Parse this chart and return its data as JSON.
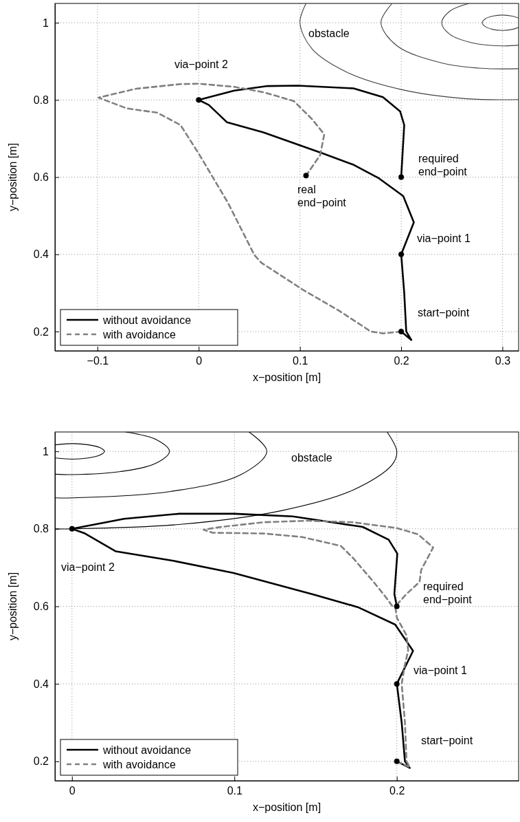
{
  "chart_data": [
    {
      "type": "line",
      "xlabel": "x−position [m]",
      "ylabel": "y−position [m]",
      "xlim": [
        -0.142,
        0.316
      ],
      "ylim": [
        0.15,
        1.05
      ],
      "xticks": [
        {
          "value": -0.1,
          "label": "−0.1"
        },
        0,
        0.1,
        0.2,
        0.3
      ],
      "yticks": [
        0.2,
        0.4,
        0.6,
        0.8,
        1
      ],
      "grid": true,
      "legend": "bottom left",
      "series": [
        {
          "name": "without avoidance",
          "color": "#000000",
          "line_style": "solid",
          "x": [
            0.2,
            0.21,
            0.205,
            0.203,
            0.2,
            0.2125,
            0.202,
            0.178,
            0.153,
            0.123,
            0.064,
            0.028,
            0.01,
            0,
            0.035,
            0.068,
            0.098,
            0.153,
            0.182,
            0.199,
            0.203,
            0.2
          ],
          "values": [
            0.2,
            0.178,
            0.2,
            0.3,
            0.4,
            0.483,
            0.551,
            0.597,
            0.632,
            0.661,
            0.716,
            0.742,
            0.787,
            0.8,
            0.824,
            0.836,
            0.837,
            0.83,
            0.807,
            0.77,
            0.735,
            0.6
          ]
        },
        {
          "name": "with avoidance",
          "color": "#808080",
          "line_style": "dashed",
          "x": [
            0.2,
            0.182,
            0.17,
            0.138,
            0.103,
            0.062,
            0.055,
            0.029,
            0,
            -0.018,
            -0.041,
            -0.071,
            -0.099,
            -0.062,
            -0.018,
            0,
            0.035,
            0.064,
            0.094,
            0.112,
            0.124,
            0.12,
            0.106
          ],
          "values": [
            0.2,
            0.195,
            0.2,
            0.255,
            0.308,
            0.378,
            0.398,
            0.533,
            0.661,
            0.735,
            0.767,
            0.778,
            0.806,
            0.829,
            0.841,
            0.842,
            0.834,
            0.82,
            0.797,
            0.75,
            0.711,
            0.657,
            0.604
          ]
        },
        {
          "type": "scatter",
          "marker": "circle",
          "color": "#000000",
          "x": [
            0.2,
            0.2,
            0.2,
            0,
            0.106
          ],
          "values": [
            0.2,
            0.4,
            0.6,
            0.8,
            0.604
          ]
        },
        {
          "color": "#404040",
          "line_style": "solid",
          "x": [
            0.316,
            0.31,
            0.3,
            0.29,
            0.283,
            0.28,
            0.283,
            0.29,
            0.3,
            0.31,
            0.316
          ],
          "values": [
            1.012,
            1.017,
            1.02,
            1.017,
            1.01,
            1,
            0.99,
            0.983,
            0.98,
            0.983,
            0.988
          ]
        },
        {
          "color": "#404040",
          "line_style": "solid",
          "x": [
            0.267,
            0.248,
            0.24,
            0.248,
            0.27,
            0.3,
            0.316
          ],
          "values": [
            1.05,
            1.03,
            1,
            0.97,
            0.948,
            0.94,
            0.942
          ]
        },
        {
          "color": "#404040",
          "line_style": "solid",
          "x": [
            0.191,
            0.18,
            0.196,
            0.24,
            0.279,
            0.316
          ],
          "values": [
            1.05,
            1,
            0.94,
            0.896,
            0.882,
            0.881
          ]
        },
        {
          "color": "#404040",
          "line_style": "solid",
          "x": [
            0.106,
            0.1,
            0.112,
            0.147,
            0.2,
            0.265,
            0.316
          ],
          "values": [
            1.05,
            1,
            0.932,
            0.871,
            0.827,
            0.803,
            0.801
          ]
        }
      ],
      "annotations": [
        "obstacle",
        "via−point 2",
        "required\nend−point",
        "real\nend−point",
        "via−point 1",
        "start−point"
      ]
    },
    {
      "type": "line",
      "xlabel": "x−position [m]",
      "ylabel": "y−position [m]",
      "xlim": [
        -0.0105,
        0.275
      ],
      "ylim": [
        0.15,
        1.05
      ],
      "xticks": [
        0,
        0.1,
        0.2
      ],
      "yticks": [
        0.2,
        0.4,
        0.6,
        0.8,
        1
      ],
      "grid": true,
      "legend": "bottom left",
      "series": [
        {
          "name": "without avoidance",
          "color": "#000000",
          "line_style": "solid",
          "x": [
            0.2,
            0.208,
            0.205,
            0.203,
            0.2,
            0.21,
            0.199,
            0.176,
            0.149,
            0.0995,
            0.063,
            0.027,
            0.008,
            0,
            0.032,
            0.066,
            0.1,
            0.136,
            0.179,
            0.195,
            0.2003,
            0.1985,
            0.2
          ],
          "values": [
            0.2,
            0.183,
            0.2,
            0.3,
            0.4,
            0.485,
            0.553,
            0.598,
            0.63,
            0.686,
            0.717,
            0.742,
            0.788,
            0.8,
            0.826,
            0.839,
            0.839,
            0.832,
            0.805,
            0.772,
            0.736,
            0.632,
            0.6
          ]
        },
        {
          "name": "with avoidance",
          "color": "#808080",
          "line_style": "dashed",
          "x": [
            0.2,
            0.208,
            0.206,
            0.205,
            0.203,
            0.205,
            0.207,
            0.206,
            0.2,
            0.199,
            0.206,
            0.214,
            0.215,
            0.2224,
            0.213,
            0.2,
            0.173,
            0.145,
            0.118,
            0.092,
            0.081,
            0.0866,
            0.118,
            0.1416,
            0.1655,
            0.173,
            0.1857,
            0.193,
            0.1977
          ],
          "values": [
            0.2,
            0.185,
            0.2,
            0.3,
            0.4,
            0.45,
            0.486,
            0.525,
            0.571,
            0.6,
            0.632,
            0.663,
            0.694,
            0.752,
            0.786,
            0.802,
            0.817,
            0.821,
            0.817,
            0.805,
            0.798,
            0.79,
            0.788,
            0.779,
            0.756,
            0.725,
            0.663,
            0.625,
            0.598
          ]
        },
        {
          "type": "scatter",
          "marker": "circle",
          "color": "#000000",
          "x": [
            0.2,
            0.2,
            0.2,
            0
          ],
          "values": [
            0.2,
            0.4,
            0.6,
            0.8
          ]
        },
        {
          "color": "#000000",
          "line_style": "solid",
          "x": [
            -0.01,
            0,
            0.01,
            0.017,
            0.02,
            0.017,
            0.01,
            0,
            -0.01
          ],
          "values": [
            0.983,
            0.98,
            0.983,
            0.99,
            1,
            1.01,
            1.017,
            1.02,
            1.017
          ]
        },
        {
          "color": "#000000",
          "line_style": "solid",
          "x": [
            -0.01,
            0,
            0.03,
            0.052,
            0.06,
            0.052,
            0.033
          ],
          "values": [
            0.941,
            0.94,
            0.948,
            0.97,
            1,
            1.03,
            1.05
          ]
        },
        {
          "color": "#000000",
          "line_style": "solid",
          "x": [
            -0.01,
            0,
            0.06,
            0.104,
            0.12,
            0.109
          ],
          "values": [
            0.88,
            0.88,
            0.896,
            0.94,
            1,
            1.05
          ]
        },
        {
          "color": "#000000",
          "line_style": "solid",
          "x": [
            -0.01,
            0,
            0.068,
            0.129,
            0.173,
            0.197,
            0.2,
            0.194
          ],
          "values": [
            0.8,
            0.8,
            0.812,
            0.847,
            0.9,
            0.965,
            1,
            1.05
          ]
        }
      ],
      "annotations": [
        "obstacle",
        "via−point 2",
        "required\nend−point",
        "via−point 1",
        "start−point"
      ]
    }
  ]
}
